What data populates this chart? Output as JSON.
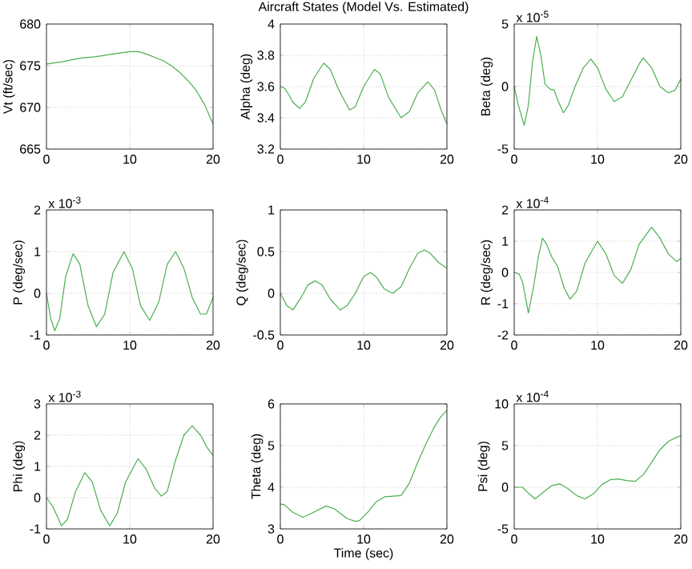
{
  "chart_data": [
    {
      "type": "line",
      "ylabel": "Vt (ft/sec)",
      "color": "#4caf50",
      "grid": true,
      "xlim": [
        0,
        20
      ],
      "ylim": [
        665,
        680
      ],
      "xticks": [
        0,
        10,
        20
      ],
      "yticks": [
        665,
        670,
        675,
        680
      ],
      "x": [
        0,
        2,
        4,
        6,
        8,
        10,
        11,
        12,
        14,
        15,
        16,
        17,
        18,
        19,
        20
      ],
      "values": [
        675.2,
        675.5,
        675.9,
        676.1,
        676.4,
        676.7,
        676.7,
        676.4,
        675.6,
        675,
        674.2,
        673.2,
        672,
        670.3,
        668
      ]
    },
    {
      "type": "line",
      "title": "Aircraft States (Model Vs. Estimated)",
      "ylabel": "Alpha (deg)",
      "color": "#4caf50",
      "grid": true,
      "xlim": [
        0,
        20
      ],
      "ylim": [
        3.2,
        4
      ],
      "xticks": [
        0,
        10,
        20
      ],
      "yticks": [
        3.2,
        3.4,
        3.6,
        3.8,
        4
      ],
      "x": [
        0,
        0.5,
        1,
        1.5,
        2.3,
        3,
        4,
        5.2,
        6,
        7,
        8.3,
        9,
        10,
        11.3,
        12,
        13,
        14.5,
        15.5,
        16.5,
        17.7,
        18.5,
        19.3,
        20
      ],
      "values": [
        3.6,
        3.59,
        3.55,
        3.5,
        3.46,
        3.5,
        3.65,
        3.75,
        3.71,
        3.58,
        3.45,
        3.47,
        3.6,
        3.71,
        3.68,
        3.53,
        3.4,
        3.44,
        3.56,
        3.63,
        3.58,
        3.45,
        3.36
      ]
    },
    {
      "type": "line",
      "ylabel": "Beta (deg)",
      "annotations": [
        "x 10$^{-5}$"
      ],
      "color": "#4caf50",
      "grid": true,
      "xlim": [
        0,
        20
      ],
      "ylim": [
        -5,
        5
      ],
      "xticks": [
        0,
        10,
        20
      ],
      "yticks": [
        -5,
        0,
        5
      ],
      "x": [
        0,
        0.5,
        1.2,
        1.7,
        2.2,
        2.7,
        3.2,
        3.7,
        4.3,
        4.8,
        5.3,
        5.9,
        6.5,
        7.3,
        8.3,
        9.2,
        10,
        11,
        12,
        13,
        14,
        15,
        15.5,
        16.5,
        17.5,
        18.5,
        19.3,
        20
      ],
      "values": [
        0,
        -1.5,
        -3.1,
        -1.5,
        2,
        4,
        2.5,
        0.2,
        -0.2,
        -0.3,
        -1.2,
        -2.1,
        -1.5,
        0,
        1.5,
        2.2,
        1.5,
        -0.2,
        -1.2,
        -0.8,
        0.5,
        1.8,
        2.3,
        1.5,
        0,
        -0.5,
        -0.3,
        0.6
      ]
    },
    {
      "type": "line",
      "ylabel": "P (deg/sec)",
      "annotations": [
        "x 10$^{-3}$"
      ],
      "color": "#4caf50",
      "grid": true,
      "xlim": [
        0,
        20
      ],
      "ylim": [
        -1,
        2
      ],
      "xticks": [
        0,
        10,
        20
      ],
      "yticks": [
        -1,
        0,
        1,
        2
      ],
      "x": [
        0,
        0.5,
        1,
        1.6,
        2.3,
        3.2,
        4,
        5,
        6,
        7,
        8,
        9.3,
        10.3,
        11.3,
        12.4,
        13.5,
        14.5,
        15.5,
        16.5,
        17.5,
        18.5,
        19.2,
        20
      ],
      "values": [
        0,
        -0.6,
        -0.9,
        -0.6,
        0.4,
        0.95,
        0.7,
        -0.3,
        -0.8,
        -0.5,
        0.5,
        1.0,
        0.6,
        -0.3,
        -0.65,
        -0.2,
        0.7,
        1.0,
        0.6,
        -0.1,
        -0.5,
        -0.5,
        -0.1
      ]
    },
    {
      "type": "line",
      "ylabel": "Q (deg/sec)",
      "color": "#4caf50",
      "grid": true,
      "xlim": [
        0,
        20
      ],
      "ylim": [
        -0.5,
        1
      ],
      "xticks": [
        0,
        10,
        20
      ],
      "yticks": [
        -0.5,
        0,
        0.5,
        1
      ],
      "x": [
        0,
        0.8,
        1.5,
        2.5,
        3.3,
        4.2,
        5,
        6,
        7.2,
        8,
        9,
        10,
        10.8,
        11.5,
        12.5,
        13.5,
        14.5,
        15.5,
        16.5,
        17.3,
        18,
        19,
        20
      ],
      "values": [
        0,
        -0.15,
        -0.2,
        -0.05,
        0.1,
        0.15,
        0.1,
        -0.07,
        -0.2,
        -0.15,
        0,
        0.2,
        0.25,
        0.2,
        0.05,
        0,
        0.08,
        0.3,
        0.48,
        0.52,
        0.48,
        0.37,
        0.3
      ]
    },
    {
      "type": "line",
      "ylabel": "R (deg/sec)",
      "annotations": [
        "x 10$^{-4}$"
      ],
      "color": "#4caf50",
      "grid": true,
      "xlim": [
        0,
        20
      ],
      "ylim": [
        -2,
        2
      ],
      "xticks": [
        0,
        10,
        20
      ],
      "yticks": [
        -2,
        -1,
        0,
        1,
        2
      ],
      "x": [
        0,
        0.6,
        1,
        1.7,
        2.3,
        2.9,
        3.4,
        3.9,
        4.5,
        5.2,
        6,
        6.7,
        7.5,
        8.5,
        10,
        11,
        12,
        13,
        14,
        15,
        16.5,
        17.5,
        18.5,
        19.5,
        20
      ],
      "values": [
        0,
        -0.05,
        -0.3,
        -1.3,
        -0.5,
        0.5,
        1.1,
        0.9,
        0.5,
        0.2,
        -0.5,
        -0.85,
        -0.6,
        0.3,
        1.0,
        0.6,
        -0.1,
        -0.35,
        0.1,
        0.9,
        1.45,
        1.1,
        0.6,
        0.35,
        0.45
      ]
    },
    {
      "type": "line",
      "ylabel": "Phi (deg)",
      "annotations": [
        "x 10$^{-3}$"
      ],
      "color": "#4caf50",
      "grid": true,
      "xlim": [
        0,
        20
      ],
      "ylim": [
        -1,
        3
      ],
      "xticks": [
        0,
        10,
        20
      ],
      "yticks": [
        -1,
        0,
        1,
        2,
        3
      ],
      "x": [
        0,
        0.8,
        1.8,
        2.5,
        3.5,
        4.6,
        5.5,
        6.5,
        7.6,
        8.5,
        9.5,
        11,
        12,
        13,
        13.8,
        14.5,
        15.5,
        16.5,
        17.5,
        18.5,
        19.3,
        20
      ],
      "values": [
        0,
        -0.3,
        -0.9,
        -0.7,
        0.2,
        0.8,
        0.5,
        -0.4,
        -0.9,
        -0.5,
        0.5,
        1.25,
        0.9,
        0.3,
        0.05,
        0.2,
        1.2,
        2.0,
        2.3,
        2.0,
        1.6,
        1.35
      ]
    },
    {
      "type": "line",
      "ylabel": "Theta (deg)",
      "xlabel": "Time (sec)",
      "color": "#4caf50",
      "grid": true,
      "xlim": [
        0,
        20
      ],
      "ylim": [
        3,
        6
      ],
      "xticks": [
        0,
        10,
        20
      ],
      "yticks": [
        3,
        4,
        5,
        6
      ],
      "x": [
        0,
        0.5,
        1.5,
        2.7,
        3.5,
        5.5,
        6.5,
        8,
        9,
        9.5,
        10.5,
        11.5,
        12.5,
        14.5,
        15.5,
        16.5,
        17.5,
        18.5,
        19.3,
        20
      ],
      "values": [
        3.6,
        3.58,
        3.4,
        3.28,
        3.35,
        3.55,
        3.48,
        3.25,
        3.18,
        3.2,
        3.4,
        3.65,
        3.77,
        3.8,
        4.1,
        4.6,
        5.05,
        5.45,
        5.7,
        5.85
      ]
    },
    {
      "type": "line",
      "ylabel": "Psi (deg)",
      "annotations": [
        "x 10$^{-4}$"
      ],
      "color": "#4caf50",
      "grid": true,
      "xlim": [
        0,
        20
      ],
      "ylim": [
        -5,
        10
      ],
      "xticks": [
        0,
        10,
        20
      ],
      "yticks": [
        -5,
        0,
        5,
        10
      ],
      "x": [
        0,
        1,
        1.8,
        2.5,
        3.5,
        4.5,
        5.5,
        6.5,
        7.5,
        8.5,
        9.5,
        10.5,
        11.5,
        12.5,
        13.5,
        14.5,
        15.5,
        16.5,
        17.5,
        18.5,
        19.5,
        20
      ],
      "values": [
        0,
        0,
        -0.8,
        -1.4,
        -0.6,
        0.2,
        0.4,
        -0.2,
        -1.0,
        -1.4,
        -0.8,
        0.3,
        0.9,
        1.0,
        0.8,
        0.7,
        1.5,
        3,
        4.5,
        5.5,
        6.0,
        6.2
      ]
    }
  ]
}
